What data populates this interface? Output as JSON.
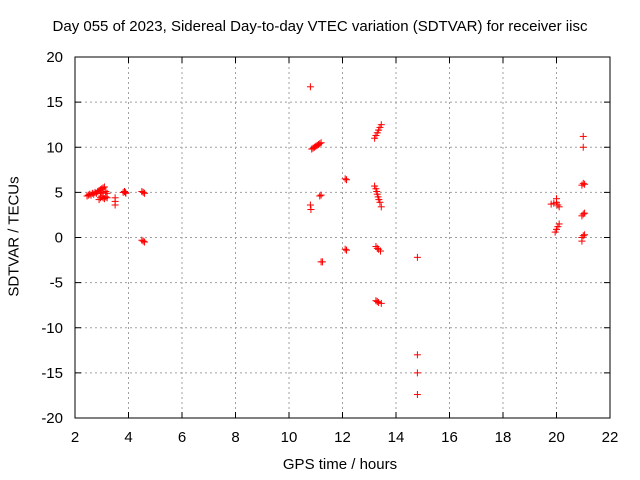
{
  "chart_data": {
    "type": "scatter",
    "title": "Day 055 of 2023, Sidereal Day-to-day VTEC variation (SDTVAR) for receiver iisc",
    "xlabel": "GPS time / hours",
    "ylabel": "SDTVAR / TECUs",
    "xlim": [
      2,
      22
    ],
    "ylim": [
      -20,
      20
    ],
    "xticks": [
      2,
      4,
      6,
      8,
      10,
      12,
      14,
      16,
      18,
      20,
      22
    ],
    "yticks": [
      -20,
      -15,
      -10,
      -5,
      0,
      5,
      10,
      15,
      20
    ],
    "grid": true,
    "marker": "+",
    "color": "#ff0000",
    "series": [
      {
        "name": "SDTVAR",
        "points": [
          [
            2.45,
            4.6
          ],
          [
            2.5,
            4.7
          ],
          [
            2.55,
            4.8
          ],
          [
            2.6,
            4.7
          ],
          [
            2.65,
            4.9
          ],
          [
            2.7,
            4.8
          ],
          [
            2.75,
            5.0
          ],
          [
            2.8,
            4.9
          ],
          [
            2.85,
            5.1
          ],
          [
            2.9,
            5.2
          ],
          [
            2.95,
            5.3
          ],
          [
            3.0,
            5.4
          ],
          [
            3.05,
            5.5
          ],
          [
            3.1,
            5.6
          ],
          [
            2.9,
            4.2
          ],
          [
            2.95,
            4.4
          ],
          [
            3.0,
            4.6
          ],
          [
            3.05,
            4.4
          ],
          [
            3.1,
            4.3
          ],
          [
            3.15,
            4.5
          ],
          [
            3.2,
            4.4
          ],
          [
            2.95,
            4.9
          ],
          [
            3.05,
            5.0
          ],
          [
            3.15,
            5.1
          ],
          [
            3.2,
            4.9
          ],
          [
            3.5,
            4.4
          ],
          [
            3.5,
            4.0
          ],
          [
            3.5,
            3.6
          ],
          [
            3.8,
            5.0
          ],
          [
            3.85,
            5.1
          ],
          [
            3.9,
            4.9
          ],
          [
            3.88,
            5.0
          ],
          [
            4.5,
            5.1
          ],
          [
            4.55,
            5.0
          ],
          [
            4.6,
            4.9
          ],
          [
            4.5,
            -0.3
          ],
          [
            4.55,
            -0.4
          ],
          [
            4.6,
            -0.5
          ],
          [
            10.8,
            16.7
          ],
          [
            10.85,
            9.8
          ],
          [
            10.9,
            9.9
          ],
          [
            10.95,
            10.0
          ],
          [
            11.0,
            10.1
          ],
          [
            11.05,
            10.2
          ],
          [
            11.1,
            10.3
          ],
          [
            11.15,
            10.4
          ],
          [
            11.2,
            10.5
          ],
          [
            10.8,
            3.6
          ],
          [
            10.82,
            3.1
          ],
          [
            11.15,
            4.6
          ],
          [
            11.2,
            4.7
          ],
          [
            11.2,
            -2.7
          ],
          [
            11.25,
            -2.7
          ],
          [
            12.1,
            6.5
          ],
          [
            12.15,
            6.4
          ],
          [
            12.1,
            -1.3
          ],
          [
            12.15,
            -1.4
          ],
          [
            13.2,
            11.0
          ],
          [
            13.25,
            11.3
          ],
          [
            13.3,
            11.6
          ],
          [
            13.35,
            11.9
          ],
          [
            13.4,
            12.2
          ],
          [
            13.45,
            12.5
          ],
          [
            13.2,
            5.7
          ],
          [
            13.25,
            5.4
          ],
          [
            13.28,
            5.1
          ],
          [
            13.3,
            4.8
          ],
          [
            13.33,
            4.5
          ],
          [
            13.36,
            4.2
          ],
          [
            13.4,
            3.9
          ],
          [
            13.45,
            3.4
          ],
          [
            13.25,
            -1.0
          ],
          [
            13.3,
            -1.2
          ],
          [
            13.35,
            -1.3
          ],
          [
            13.42,
            -1.5
          ],
          [
            13.25,
            -7.0
          ],
          [
            13.3,
            -7.1
          ],
          [
            13.35,
            -7.2
          ],
          [
            13.45,
            -7.3
          ],
          [
            14.8,
            -2.2
          ],
          [
            14.8,
            -13.0
          ],
          [
            14.8,
            -15.0
          ],
          [
            14.8,
            -17.4
          ],
          [
            19.8,
            3.7
          ],
          [
            19.9,
            3.8
          ],
          [
            20.0,
            3.9
          ],
          [
            20.0,
            4.3
          ],
          [
            20.05,
            3.6
          ],
          [
            20.1,
            3.4
          ],
          [
            19.95,
            0.6
          ],
          [
            20.0,
            0.9
          ],
          [
            20.05,
            1.2
          ],
          [
            20.1,
            1.5
          ],
          [
            21.0,
            11.2
          ],
          [
            21.0,
            10.0
          ],
          [
            20.95,
            5.8
          ],
          [
            21.0,
            6.0
          ],
          [
            21.05,
            5.9
          ],
          [
            20.95,
            2.4
          ],
          [
            21.0,
            2.6
          ],
          [
            21.05,
            2.7
          ],
          [
            20.95,
            0.0
          ],
          [
            21.0,
            0.2
          ],
          [
            21.05,
            0.3
          ],
          [
            20.95,
            -0.4
          ]
        ]
      }
    ]
  }
}
